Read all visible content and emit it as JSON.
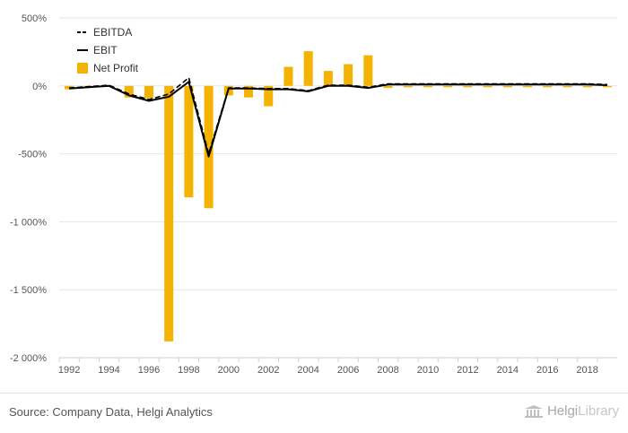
{
  "chart_data": {
    "type": "bar",
    "x": [
      1992,
      1993,
      1994,
      1995,
      1996,
      1997,
      1998,
      1999,
      2000,
      2001,
      2002,
      2003,
      2004,
      2005,
      2006,
      2007,
      2008,
      2009,
      2010,
      2011,
      2012,
      2013,
      2014,
      2015,
      2016,
      2017,
      2018,
      2019
    ],
    "x_tick_labels": [
      "1992",
      "1994",
      "1996",
      "1998",
      "2000",
      "2002",
      "2004",
      "2006",
      "2008",
      "2010",
      "2012",
      "2014",
      "2016",
      "2018"
    ],
    "y_tick_labels": [
      "500%",
      "0%",
      "-500%",
      "-1 000%",
      "-1 500%",
      "-2 000%"
    ],
    "y_ticks": [
      500,
      0,
      -500,
      -1000,
      -1500,
      -2000
    ],
    "ylim": [
      -2000,
      500
    ],
    "unit": "%",
    "grid": true,
    "legend_position": "top-left",
    "series": [
      {
        "name": "EBITDA",
        "kind": "line",
        "style": "dashed",
        "color": "#000000",
        "values": [
          -15,
          -5,
          5,
          -60,
          -100,
          -60,
          60,
          -500,
          -15,
          -15,
          -20,
          -20,
          -35,
          5,
          5,
          -10,
          15,
          15,
          15,
          15,
          15,
          15,
          15,
          15,
          15,
          15,
          15,
          10
        ]
      },
      {
        "name": "EBIT",
        "kind": "line",
        "style": "solid",
        "color": "#000000",
        "values": [
          -20,
          -10,
          0,
          -70,
          -110,
          -80,
          30,
          -520,
          -20,
          -20,
          -25,
          -25,
          -40,
          0,
          0,
          -15,
          10,
          10,
          10,
          10,
          10,
          10,
          10,
          10,
          10,
          10,
          10,
          5
        ]
      },
      {
        "name": "Net Profit",
        "kind": "bar",
        "color": "#f5b301",
        "values": [
          -25,
          -10,
          0,
          -85,
          -90,
          -1880,
          -820,
          -900,
          -70,
          -85,
          -150,
          140,
          255,
          110,
          160,
          225,
          -15,
          -10,
          -10,
          -10,
          -10,
          -10,
          -10,
          -10,
          -10,
          -10,
          -10,
          -10
        ]
      }
    ]
  },
  "footer": {
    "source": "Source: Company Data, Helgi Analytics",
    "brand_part1": "Helgi",
    "brand_part2": "Library"
  }
}
